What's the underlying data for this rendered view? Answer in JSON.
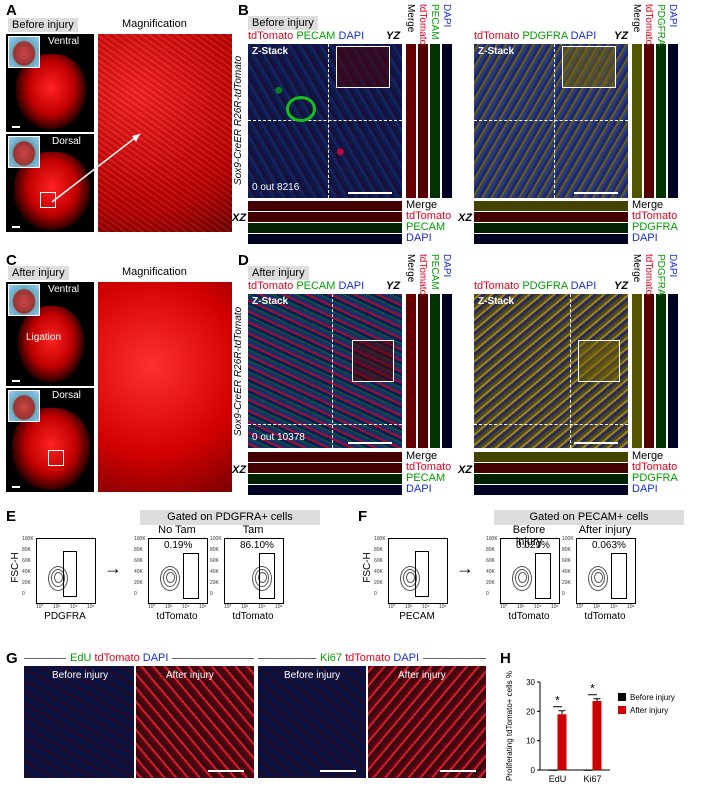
{
  "panels": {
    "A": {
      "letter": "A",
      "box_label": "Before injury",
      "mag_label": "Magnification",
      "ventral": "Ventral",
      "dorsal": "Dorsal"
    },
    "B": {
      "letter": "B",
      "box_label": "Before injury",
      "stack": "Z-Stack",
      "count": "0 out 8216",
      "genotype": "Sox9-CreER R26R-tdTomato",
      "left_channels": [
        "tdTomato",
        "PECAM",
        "DAPI"
      ],
      "right_channels": [
        "tdTomato",
        "PDGFRA",
        "DAPI"
      ],
      "yz": "YZ",
      "xz": "XZ",
      "left_vtags": [
        "Merge",
        "tdTomato",
        "PECAM",
        "DAPI"
      ],
      "right_vtags": [
        "Merge",
        "tdTomato",
        "PDGFRA",
        "DAPI"
      ],
      "left_htags": [
        "Merge",
        "tdTomato",
        "PECAM",
        "DAPI"
      ],
      "right_htags": [
        "Merge",
        "tdTomato",
        "PDGFRA",
        "DAPI"
      ]
    },
    "C": {
      "letter": "C",
      "box_label": "After injury",
      "mag_label": "Magnification",
      "ventral": "Ventral",
      "dorsal": "Dorsal",
      "ligation": "Ligation"
    },
    "D": {
      "letter": "D",
      "box_label": "After injury",
      "stack": "Z-Stack",
      "count": "0 out 10378",
      "genotype": "Sox9-CreER R26R-tdTomato",
      "left_channels": [
        "tdTomato",
        "PECAM",
        "DAPI"
      ],
      "right_channels": [
        "tdTomato",
        "PDGFRA",
        "DAPI"
      ],
      "yz": "YZ",
      "xz": "XZ",
      "left_vtags": [
        "Merge",
        "tdTomato",
        "PECAM",
        "DAPI"
      ],
      "right_vtags": [
        "Merge",
        "tdTomato",
        "PDGFRA",
        "DAPI"
      ],
      "left_htags": [
        "Merge",
        "tdTomato",
        "PECAM",
        "DAPI"
      ],
      "right_htags": [
        "Merge",
        "tdTomato",
        "PDGFRA",
        "DAPI"
      ]
    },
    "E": {
      "letter": "E",
      "gated": "Gated on PDGFRA+ cells",
      "plots": [
        {
          "title": "",
          "xlab": "PDGFRA",
          "ylab": "FSC-H",
          "pct": ""
        },
        {
          "title": "No Tam",
          "xlab": "tdTomato",
          "ylab": "",
          "pct": "0.19%"
        },
        {
          "title": "Tam",
          "xlab": "tdTomato",
          "ylab": "",
          "pct": "86.10%"
        }
      ]
    },
    "F": {
      "letter": "F",
      "gated": "Gated on PECAM+ cells",
      "plots": [
        {
          "title": "",
          "xlab": "PECAM",
          "ylab": "FSC-H",
          "pct": ""
        },
        {
          "title": "Before injury",
          "xlab": "tdTomato",
          "ylab": "",
          "pct": "0.029%"
        },
        {
          "title": "After injury",
          "xlab": "tdTomato",
          "ylab": "",
          "pct": "0.063%"
        }
      ]
    },
    "G": {
      "letter": "G",
      "left_stains": [
        "EdU",
        "tdTomato",
        "DAPI"
      ],
      "right_stains": [
        "Ki67",
        "tdTomato",
        "DAPI"
      ],
      "tiles": [
        "Before injury",
        "After injury",
        "Before injury",
        "After injury"
      ]
    },
    "H": {
      "letter": "H"
    }
  },
  "flow_ticks": {
    "y": [
      "100K",
      "80K",
      "60K",
      "40K",
      "20K",
      "0"
    ],
    "x": [
      "10°",
      "10²",
      "10⁴",
      "10⁶"
    ]
  },
  "colors": {
    "tdTomato": "#e8001c",
    "green": "#00a000",
    "blue": "#1a2bd6",
    "gray_box": "#dddddd"
  },
  "chart_data": {
    "type": "bar",
    "categories": [
      "EdU",
      "Ki67"
    ],
    "series": [
      {
        "name": "Before injury",
        "values": [
          0,
          0
        ],
        "color": "#000000"
      },
      {
        "name": "After injury",
        "values": [
          19,
          23.5
        ],
        "errors": [
          1.2,
          0.8
        ],
        "color": "#cc0000"
      }
    ],
    "ylabel": "Proliferating tdTomato+ cells %",
    "ylim": [
      0,
      30
    ],
    "yticks": [
      0,
      10,
      20,
      30
    ],
    "significance": [
      "*",
      "*"
    ],
    "legend_placement": "right"
  }
}
